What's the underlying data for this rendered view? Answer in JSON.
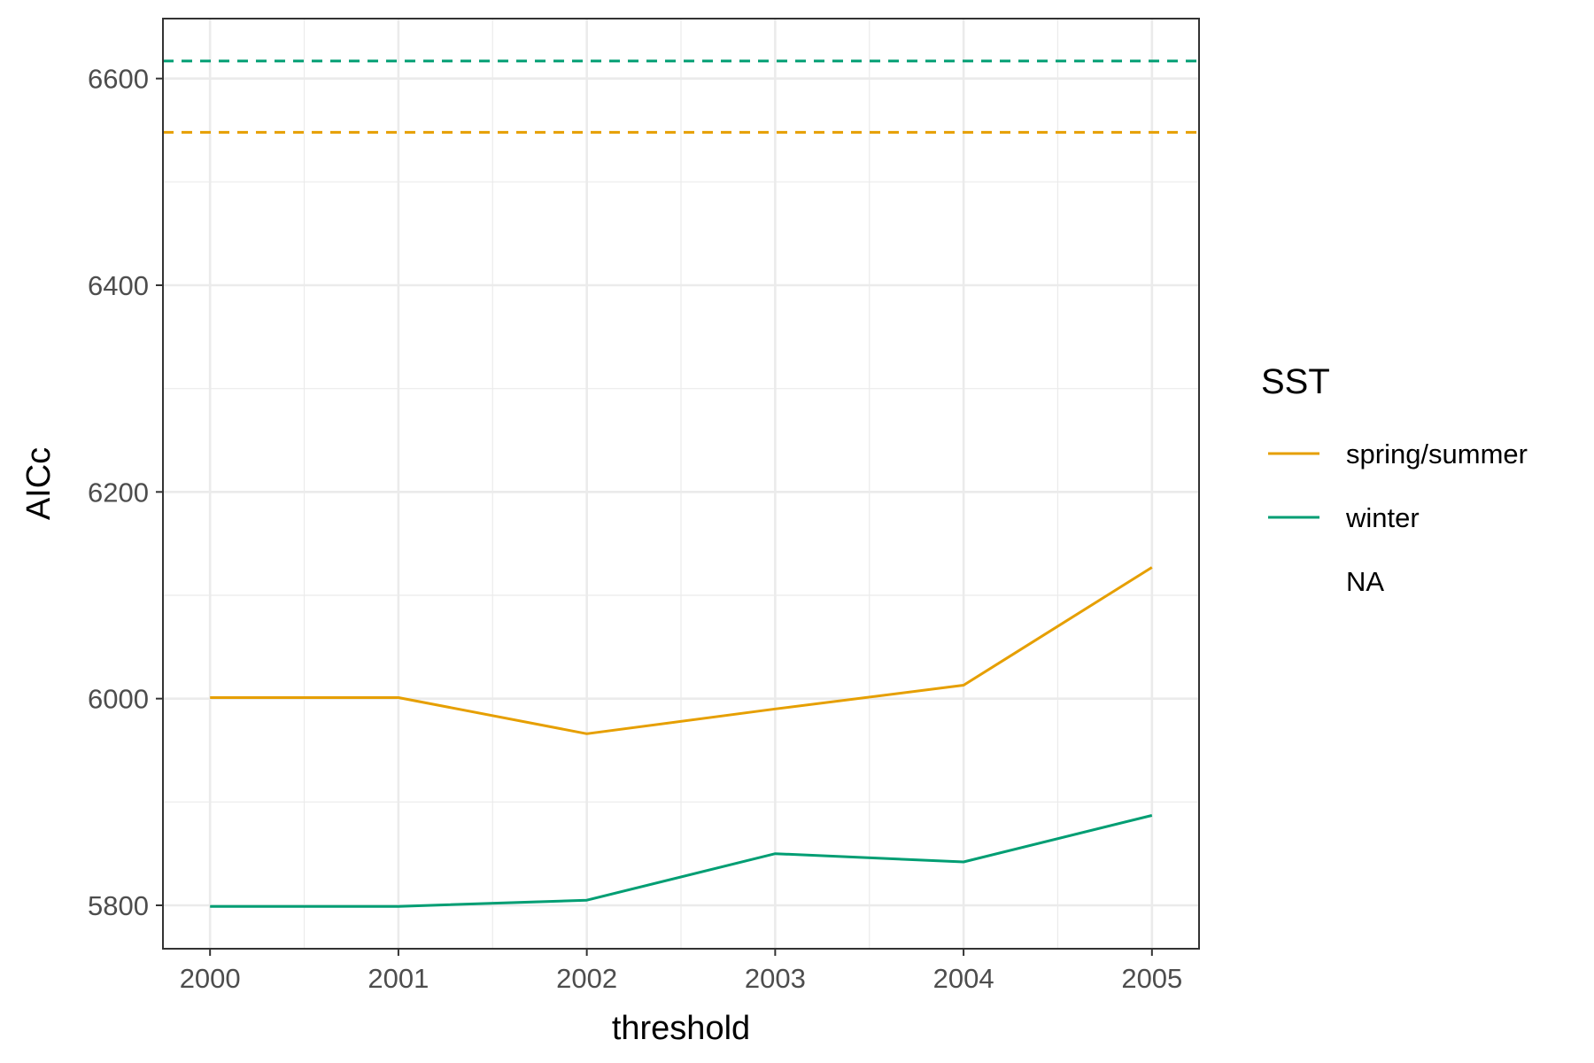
{
  "chart_data": {
    "type": "line",
    "title": "",
    "xlabel": "threshold",
    "ylabel": "AICc",
    "x": [
      2000,
      2001,
      2002,
      2003,
      2004,
      2005
    ],
    "x_tick_labels": [
      "2000",
      "2001",
      "2002",
      "2003",
      "2004",
      "2005"
    ],
    "y_ticks": [
      5800,
      6000,
      6200,
      6400,
      6600
    ],
    "y_tick_labels": [
      "5800",
      "6000",
      "6200",
      "6400",
      "6600"
    ],
    "xlim": [
      1999.75,
      2005.25
    ],
    "ylim": [
      5758,
      6658
    ],
    "grid": true,
    "series": [
      {
        "name": "spring/summer",
        "color": "#E69F00",
        "values": [
          6001,
          6001,
          5966,
          5990,
          6013,
          6127
        ]
      },
      {
        "name": "winter",
        "color": "#009E73",
        "values": [
          5799,
          5799,
          5805,
          5850,
          5842,
          5887
        ]
      }
    ],
    "reference_lines": [
      {
        "series": "winter",
        "y": 6617,
        "color": "#009E73",
        "style": "dashed"
      },
      {
        "series": "spring/summer",
        "y": 6548,
        "color": "#E69F00",
        "style": "dashed"
      }
    ],
    "legend": {
      "title": "SST",
      "placement": "right",
      "entries": [
        {
          "label": "spring/summer",
          "color": "#E69F00"
        },
        {
          "label": "winter",
          "color": "#009E73"
        },
        {
          "label": "NA",
          "color": ""
        }
      ]
    }
  }
}
